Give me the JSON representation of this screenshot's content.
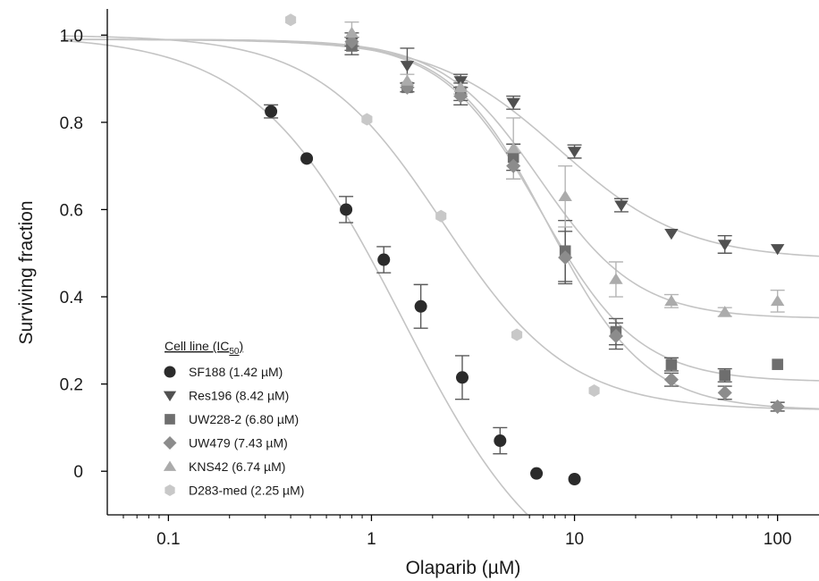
{
  "chart_data": {
    "type": "scatter",
    "xlabel": "Olaparib (µM)",
    "ylabel": "Surviving fraction",
    "xscale": "log",
    "xlim": [
      0.05,
      160
    ],
    "ylim": [
      -0.1,
      1.06
    ],
    "x_ticks": [
      0.1,
      1,
      10,
      100
    ],
    "x_tick_labels": [
      "0.1",
      "1",
      "10",
      "100"
    ],
    "y_ticks": [
      0,
      0.2,
      0.4,
      0.6,
      0.8,
      1.0
    ],
    "y_tick_labels": [
      "0",
      "0.2",
      "0.4",
      "0.6",
      "0.8",
      "1.0"
    ],
    "grid": false,
    "legend": {
      "title_prefix": "Cell line (IC",
      "title_sub": "50",
      "title_suffix": ")",
      "placement": "bottom-left"
    },
    "series": [
      {
        "name": "SF188 (1.42 µM)",
        "marker": "circle",
        "color": "#2b2b2b",
        "fit": {
          "top": 1.0,
          "bottom": -0.3,
          "ic50": 1.42,
          "hill": 1.2
        },
        "points": [
          {
            "x": 0.32,
            "y": 0.825,
            "err": 0.015
          },
          {
            "x": 0.48,
            "y": 0.717,
            "err": 0.0
          },
          {
            "x": 0.75,
            "y": 0.6,
            "err": 0.03
          },
          {
            "x": 1.15,
            "y": 0.485,
            "err": 0.03
          },
          {
            "x": 1.75,
            "y": 0.378,
            "err": 0.05
          },
          {
            "x": 2.8,
            "y": 0.215,
            "err": 0.05
          },
          {
            "x": 4.3,
            "y": 0.07,
            "err": 0.03
          },
          {
            "x": 6.5,
            "y": -0.005,
            "err": 0.0
          },
          {
            "x": 10.0,
            "y": -0.018,
            "err": 0.0
          }
        ]
      },
      {
        "name": "Res196 (8.42 µM)",
        "marker": "triangle-down",
        "color": "#505050",
        "fit": {
          "top": 0.99,
          "bottom": 0.485,
          "ic50": 8.42,
          "hill": 1.4
        },
        "points": [
          {
            "x": 0.8,
            "y": 0.985,
            "err": 0.02
          },
          {
            "x": 1.5,
            "y": 0.93,
            "err": 0.04
          },
          {
            "x": 2.75,
            "y": 0.895,
            "err": 0.015
          },
          {
            "x": 5.0,
            "y": 0.845,
            "err": 0.015
          },
          {
            "x": 10.0,
            "y": 0.733,
            "err": 0.015
          },
          {
            "x": 17.0,
            "y": 0.61,
            "err": 0.015
          },
          {
            "x": 30.0,
            "y": 0.545,
            "err": 0.0
          },
          {
            "x": 55.0,
            "y": 0.52,
            "err": 0.02
          },
          {
            "x": 100.0,
            "y": 0.51,
            "err": 0.0
          }
        ]
      },
      {
        "name": "UW228-2 (6.80 µM)",
        "marker": "square",
        "color": "#6e6e6e",
        "fit": {
          "top": 0.99,
          "bottom": 0.205,
          "ic50": 6.8,
          "hill": 1.8
        },
        "points": [
          {
            "x": 0.8,
            "y": 0.975,
            "err": 0.02
          },
          {
            "x": 1.5,
            "y": 0.88,
            "err": 0.01
          },
          {
            "x": 2.75,
            "y": 0.87,
            "err": 0.02
          },
          {
            "x": 5.0,
            "y": 0.72,
            "err": 0.03
          },
          {
            "x": 9.0,
            "y": 0.505,
            "err": 0.07
          },
          {
            "x": 16.0,
            "y": 0.32,
            "err": 0.03
          },
          {
            "x": 30.0,
            "y": 0.245,
            "err": 0.015
          },
          {
            "x": 55.0,
            "y": 0.22,
            "err": 0.015
          },
          {
            "x": 100.0,
            "y": 0.245,
            "err": 0.0
          }
        ]
      },
      {
        "name": "UW479 (7.43 µM)",
        "marker": "diamond",
        "color": "#8c8c8c",
        "fit": {
          "top": 0.99,
          "bottom": 0.14,
          "ic50": 7.43,
          "hill": 1.8
        },
        "points": [
          {
            "x": 0.8,
            "y": 0.985,
            "err": 0.01
          },
          {
            "x": 1.5,
            "y": 0.88,
            "err": 0.01
          },
          {
            "x": 2.75,
            "y": 0.86,
            "err": 0.02
          },
          {
            "x": 5.0,
            "y": 0.7,
            "err": 0.03
          },
          {
            "x": 9.0,
            "y": 0.49,
            "err": 0.06
          },
          {
            "x": 16.0,
            "y": 0.31,
            "err": 0.03
          },
          {
            "x": 30.0,
            "y": 0.21,
            "err": 0.015
          },
          {
            "x": 55.0,
            "y": 0.18,
            "err": 0.015
          },
          {
            "x": 100.0,
            "y": 0.148,
            "err": 0.01
          }
        ]
      },
      {
        "name": "KNS42 (6.74 µM)",
        "marker": "triangle-up",
        "color": "#ababab",
        "fit": {
          "top": 0.99,
          "bottom": 0.35,
          "ic50": 6.74,
          "hill": 1.8
        },
        "points": [
          {
            "x": 0.8,
            "y": 1.005,
            "err": 0.025
          },
          {
            "x": 1.5,
            "y": 0.895,
            "err": 0.015
          },
          {
            "x": 2.75,
            "y": 0.88,
            "err": 0.015
          },
          {
            "x": 5.0,
            "y": 0.74,
            "err": 0.07
          },
          {
            "x": 9.0,
            "y": 0.63,
            "err": 0.07
          },
          {
            "x": 16.0,
            "y": 0.44,
            "err": 0.04
          },
          {
            "x": 30.0,
            "y": 0.39,
            "err": 0.015
          },
          {
            "x": 55.0,
            "y": 0.365,
            "err": 0.01
          },
          {
            "x": 100.0,
            "y": 0.39,
            "err": 0.025
          }
        ]
      },
      {
        "name": "D283-med (2.25 µM)",
        "marker": "hexagon",
        "color": "#c8c8c8",
        "fit": {
          "top": 1.0,
          "bottom": 0.14,
          "ic50": 2.25,
          "hill": 1.4
        },
        "points": [
          {
            "x": 0.4,
            "y": 1.035,
            "err": 0.0
          },
          {
            "x": 0.95,
            "y": 0.807,
            "err": 0.0
          },
          {
            "x": 2.2,
            "y": 0.585,
            "err": 0.0
          },
          {
            "x": 5.2,
            "y": 0.313,
            "err": 0.0
          },
          {
            "x": 12.5,
            "y": 0.185,
            "err": 0.0
          }
        ]
      }
    ]
  }
}
